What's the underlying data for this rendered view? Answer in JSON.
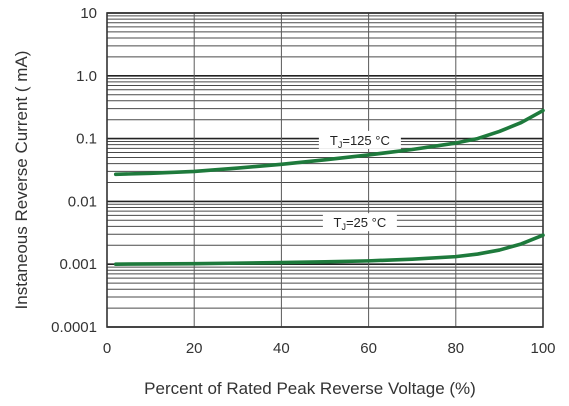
{
  "chart_data": {
    "type": "line",
    "title": "",
    "xlabel": "Percent of Rated Peak Reverse Voltage  (%)",
    "ylabel": "Instaneous  Reverse  Current ( mA)",
    "xlim": [
      0,
      100
    ],
    "ylim": [
      0.0001,
      10
    ],
    "yscale": "log",
    "grid": true,
    "x_ticks": [
      0,
      20,
      40,
      60,
      80,
      100
    ],
    "x_tick_labels": [
      "0",
      "20",
      "40",
      "60",
      "80",
      "100"
    ],
    "y_ticks": [
      0.0001,
      0.001,
      0.01,
      0.1,
      1,
      10
    ],
    "y_tick_labels": [
      "0.0001",
      "0.001",
      "0.01",
      "0.1",
      "1.0",
      "10"
    ],
    "series": [
      {
        "name": "TJ=125°C",
        "color": "#1e7a3c",
        "x": [
          2,
          10,
          20,
          30,
          40,
          50,
          60,
          70,
          80,
          85,
          90,
          95,
          100
        ],
        "y": [
          0.027,
          0.028,
          0.03,
          0.034,
          0.039,
          0.046,
          0.055,
          0.067,
          0.085,
          0.1,
          0.13,
          0.18,
          0.28
        ]
      },
      {
        "name": "TJ=25°C",
        "color": "#1e7a3c",
        "x": [
          2,
          10,
          20,
          30,
          40,
          50,
          60,
          70,
          80,
          85,
          90,
          95,
          100
        ],
        "y": [
          0.001,
          0.00101,
          0.00102,
          0.00104,
          0.00106,
          0.00109,
          0.00113,
          0.0012,
          0.00132,
          0.00145,
          0.00168,
          0.0021,
          0.0029
        ]
      }
    ],
    "annotations": [
      {
        "id": "tj125",
        "main": "T",
        "sub": "J",
        "rest": "=125 °C",
        "x": 58,
        "y": 0.092
      },
      {
        "id": "tj25",
        "main": "T",
        "sub": "J",
        "rest": "=25 °C",
        "x": 58,
        "y": 0.0045
      }
    ]
  }
}
